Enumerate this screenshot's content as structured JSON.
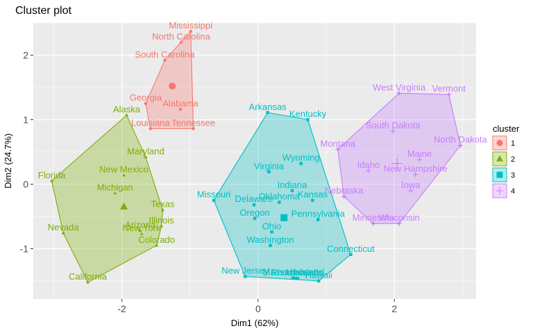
{
  "chart_data": {
    "type": "scatter",
    "title": "Cluster plot",
    "xlabel": "Dim1 (62%)",
    "ylabel": "Dim2 (24.7%)",
    "xlim": [
      -3.3,
      3.2
    ],
    "ylim": [
      -1.78,
      2.5
    ],
    "x_ticks": [
      -2,
      0,
      2
    ],
    "y_ticks": [
      -1,
      0,
      1,
      2
    ],
    "grid": true,
    "legend_position": "right",
    "legend_title": "cluster",
    "series": [
      {
        "name": "1",
        "color": "#F8766D",
        "shape": "circle",
        "centroid": [
          -1.26,
          1.52
        ],
        "points": [
          {
            "label": "Mississippi",
            "x": -0.99,
            "y": 2.37
          },
          {
            "label": "North Carolina",
            "x": -1.13,
            "y": 2.2
          },
          {
            "label": "South Carolina",
            "x": -1.37,
            "y": 1.92
          },
          {
            "label": "Georgia",
            "x": -1.65,
            "y": 1.25
          },
          {
            "label": "Alabama",
            "x": -1.14,
            "y": 1.16
          },
          {
            "label": "Louisiana",
            "x": -1.58,
            "y": 0.86
          },
          {
            "label": "Tennessee",
            "x": -0.95,
            "y": 0.86
          }
        ]
      },
      {
        "name": "2",
        "color": "#7CAE00",
        "shape": "triangle",
        "centroid": [
          -1.97,
          -0.35
        ],
        "points": [
          {
            "label": "Alaska",
            "x": -1.93,
            "y": 1.07
          },
          {
            "label": "Maryland",
            "x": -1.65,
            "y": 0.42
          },
          {
            "label": "New Mexico",
            "x": -1.97,
            "y": 0.14
          },
          {
            "label": "Florida",
            "x": -3.03,
            "y": 0.05
          },
          {
            "label": "Michigan",
            "x": -2.1,
            "y": -0.14
          },
          {
            "label": "Texas",
            "x": -1.4,
            "y": -0.4
          },
          {
            "label": "Illinois",
            "x": -1.42,
            "y": -0.65
          },
          {
            "label": "Arizona",
            "x": -1.73,
            "y": -0.72
          },
          {
            "label": "New York",
            "x": -1.71,
            "y": -0.77
          },
          {
            "label": "Colorado",
            "x": -1.49,
            "y": -0.95
          },
          {
            "label": "Nevada",
            "x": -2.86,
            "y": -0.76
          },
          {
            "label": "California",
            "x": -2.5,
            "y": -1.52
          }
        ]
      },
      {
        "name": "3",
        "color": "#00BFC4",
        "shape": "square",
        "centroid": [
          0.38,
          -0.52
        ],
        "points": [
          {
            "label": "Arkansas",
            "x": 0.14,
            "y": 1.11
          },
          {
            "label": "Kentucky",
            "x": 0.73,
            "y": 1.0
          },
          {
            "label": "Wyoming",
            "x": 0.63,
            "y": 0.32
          },
          {
            "label": "Virginia",
            "x": 0.16,
            "y": 0.19
          },
          {
            "label": "Indiana",
            "x": 0.5,
            "y": -0.1
          },
          {
            "label": "Missouri",
            "x": -0.65,
            "y": -0.25
          },
          {
            "label": "Oklahoma",
            "x": 0.31,
            "y": -0.28
          },
          {
            "label": "Kansas",
            "x": 0.8,
            "y": -0.25
          },
          {
            "label": "Delaware",
            "x": -0.06,
            "y": -0.32
          },
          {
            "label": "Pennsylvania",
            "x": 0.88,
            "y": -0.55
          },
          {
            "label": "Oregon",
            "x": -0.05,
            "y": -0.53
          },
          {
            "label": "Ohio",
            "x": 0.2,
            "y": -0.74
          },
          {
            "label": "Washington",
            "x": 0.18,
            "y": -0.95
          },
          {
            "label": "Connecticut",
            "x": 1.36,
            "y": -1.09
          },
          {
            "label": "New Jersey",
            "x": -0.19,
            "y": -1.43
          },
          {
            "label": "Massachusetts",
            "x": 0.51,
            "y": -1.45
          },
          {
            "label": "Utah",
            "x": 0.55,
            "y": -1.46
          },
          {
            "label": "Rhode Island",
            "x": 0.58,
            "y": -1.46
          },
          {
            "label": "Hawaii",
            "x": 0.89,
            "y": -1.5
          }
        ]
      },
      {
        "name": "4",
        "color": "#C77CFF",
        "shape": "cross",
        "centroid": [
          2.04,
          0.32
        ],
        "points": [
          {
            "label": "West Virginia",
            "x": 2.07,
            "y": 1.41
          },
          {
            "label": "Vermont",
            "x": 2.8,
            "y": 1.39
          },
          {
            "label": "South Dakota",
            "x": 1.98,
            "y": 0.82
          },
          {
            "label": "North Dakota",
            "x": 2.97,
            "y": 0.6
          },
          {
            "label": "Montana",
            "x": 1.17,
            "y": 0.54
          },
          {
            "label": "Maine",
            "x": 2.37,
            "y": 0.38
          },
          {
            "label": "Idaho",
            "x": 1.62,
            "y": 0.21
          },
          {
            "label": "New Hampshire",
            "x": 2.31,
            "y": 0.15
          },
          {
            "label": "Iowa",
            "x": 2.24,
            "y": -0.1
          },
          {
            "label": "Nebraska",
            "x": 1.26,
            "y": -0.19
          },
          {
            "label": "Minnesota",
            "x": 1.69,
            "y": -0.61
          },
          {
            "label": "Wisconsin",
            "x": 2.07,
            "y": -0.61
          }
        ]
      }
    ]
  }
}
